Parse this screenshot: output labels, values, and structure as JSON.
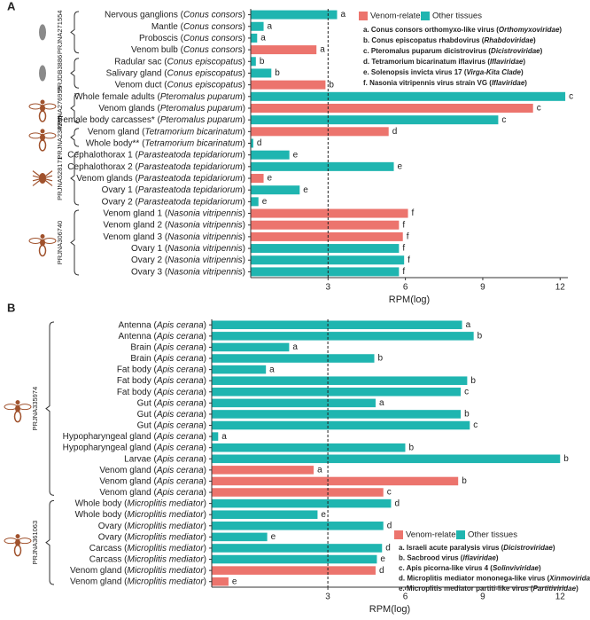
{
  "chart_data": [
    {
      "type": "bar",
      "orientation": "horizontal",
      "panel_label": "A",
      "categories": [
        "Nervous ganglions (Conus consors)",
        "Mantle (Conus consors)",
        "Proboscis (Conus consors)",
        "Venom bulb (Conus consors)",
        "Radular sac (Conus episcopatus)",
        "Salivary gland (Conus episcopatus)",
        "Venom duct (Conus episcopatus)",
        "Whole female adults (Pteromalus puparum)",
        "Venom glands (Pteromalus puparum)",
        "Female body carcasses* (Pteromalus puparum)",
        "Venom gland (Tetramorium bicarinatum)",
        "Whole body** (Tetramorium bicarinatum)",
        "Cephalothorax 1 (Parasteatoda tepidariorum)",
        "Cephalothorax 2 (Parasteatoda tepidariorum)",
        "Venom glands (Parasteatoda tepidariorum)",
        "Ovary 1 (Parasteatoda tepidariorum)",
        "Ovary 2 (Parasteatoda tepidariorum)",
        "Venom gland 1 (Nasonia vitripennis)",
        "Venom gland 2 (Nasonia vitripennis)",
        "Venom gland 3 (Nasonia vitripennis)",
        "Ovary 1 (Nasonia vitripennis)",
        "Ovary 2 (Nasonia vitripennis)",
        "Ovary 3 (Nasonia vitripennis)"
      ],
      "series": [
        {
          "name": "Venom-related",
          "color": "#ec746d",
          "values": [
            null,
            null,
            null,
            2.55,
            null,
            null,
            2.9,
            null,
            10.95,
            null,
            5.35,
            null,
            null,
            null,
            0.5,
            null,
            null,
            6.1,
            5.75,
            5.9,
            null,
            null,
            null
          ]
        },
        {
          "name": "Other tissues",
          "color": "#1fb5b0",
          "values": [
            3.35,
            0.5,
            0.25,
            null,
            0.2,
            0.8,
            null,
            12.2,
            null,
            9.6,
            null,
            0.1,
            1.5,
            5.55,
            null,
            1.9,
            0.3,
            null,
            null,
            null,
            5.75,
            5.95,
            5.75
          ]
        }
      ],
      "bar_labels": [
        "a",
        "a",
        "a",
        "a",
        "b",
        "b",
        "b",
        "c",
        "c",
        "c",
        "d",
        "d",
        "e",
        "e",
        "e",
        "e",
        "e",
        "f",
        "f",
        "f",
        "f",
        "f",
        "f"
      ],
      "projects": [
        "PRJNA271554",
        "PRJDB3886",
        "PRJNA276955",
        "PRJNA234295",
        "PRJNA528171",
        "PRJNA306740"
      ],
      "xlabel": "RPM(log)",
      "xlim": [
        0,
        12.3
      ],
      "xticks": [
        3,
        6,
        9,
        12
      ],
      "reference_line": 3,
      "legend_notes": [
        "a. Conus consors orthomyxo-like virus (Orthomyxoviridae)",
        "b. Conus episcopatus rhabdovirus (Rhabdoviridae)",
        "c. Pteromalus puparum dicistrovirus (Dicistroviridae)",
        "d. Tetramorium bicarinatum iflavirus (Iflaviridae)",
        "e. Solenopsis invicta virus 17 (Virga-Kita Clade)",
        "f. Nasonia vitripennis virus strain VG (Iflaviridae)"
      ]
    },
    {
      "type": "bar",
      "orientation": "horizontal",
      "panel_label": "B",
      "categories": [
        "Antenna (Apis cerana)",
        "Antenna (Apis cerana)",
        "Brain (Apis cerana)",
        "Brain (Apis cerana)",
        "Fat body (Apis cerana)",
        "Fat body (Apis cerana)",
        "Fat body (Apis cerana)",
        "Gut (Apis cerana)",
        "Gut (Apis cerana)",
        "Gut (Apis cerana)",
        "Hypopharyngeal gland (Apis cerana)",
        "Hypopharyngeal gland (Apis cerana)",
        "Larvae (Apis cerana)",
        "Venom gland (Apis cerana)",
        "Venom gland (Apis cerana)",
        "Venom gland (Apis cerana)",
        "Whole body (Microplitis mediator)",
        "Whole body (Microplitis mediator)",
        "Ovary (Microplitis mediator)",
        "Ovary (Microplitis mediator)",
        "Carcass (Microplitis mediator)",
        "Carcass (Microplitis mediator)",
        "Venom gland (Microplitis mediator)",
        "Venom gland (Microplitis mediator)"
      ],
      "series": [
        {
          "name": "Venom-related",
          "color": "#ec746d",
          "values": [
            null,
            null,
            null,
            null,
            null,
            null,
            null,
            null,
            null,
            null,
            null,
            null,
            null,
            2.45,
            8.05,
            5.15,
            null,
            null,
            null,
            null,
            null,
            null,
            4.85,
            -0.85
          ]
        },
        {
          "name": "Other tissues",
          "color": "#1fb5b0",
          "values": [
            8.2,
            8.65,
            1.5,
            4.8,
            0.6,
            8.4,
            8.15,
            4.85,
            8.15,
            8.5,
            -1.25,
            6.0,
            12.0,
            null,
            null,
            null,
            5.45,
            2.6,
            5.15,
            0.65,
            5.1,
            4.9,
            null,
            null
          ]
        }
      ],
      "bar_labels": [
        "a",
        "b",
        "a",
        "b",
        "a",
        "b",
        "c",
        "a",
        "b",
        "c",
        "a",
        "b",
        "b",
        "a",
        "b",
        "c",
        "d",
        "e",
        "d",
        "e",
        "d",
        "e",
        "d",
        "e"
      ],
      "projects": [
        "PRJNA335974",
        "PRJNA361063"
      ],
      "xlabel": "RPM(log)",
      "xlim": [
        -1.5,
        12.3
      ],
      "xticks": [
        3,
        6,
        9,
        12
      ],
      "reference_line": 3,
      "legend_notes": [
        "a. Israeli acute paralysis virus (Dicistroviridae)",
        "b. Sacbrood virus (Iflaviridae)",
        "c. Apis picorna-like virus 4 (Solinviviridae)",
        "d. Microplitis mediator mononega-like virus (Xinmoviridae)",
        "e. Microplitis mediator partiti-like virus (Partitiviridae)"
      ]
    }
  ]
}
